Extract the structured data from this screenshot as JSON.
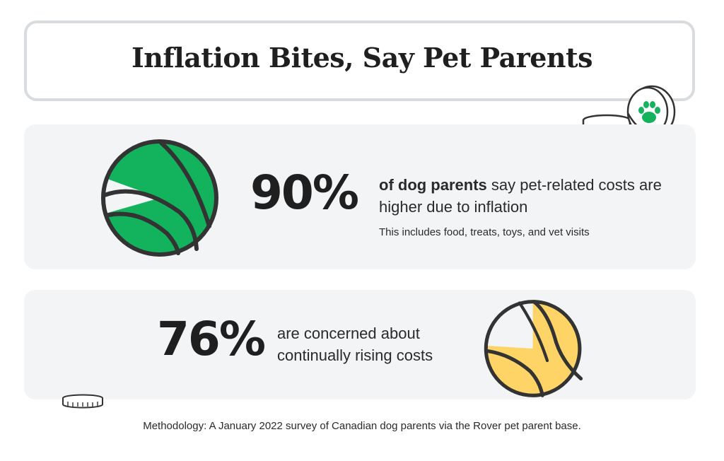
{
  "title": "Inflation Bites, Say Pet Parents",
  "colors": {
    "green": "#13b35d",
    "yellow": "#ffd466",
    "panel": "#f3f4f6",
    "outline": "#333333"
  },
  "chart_data": [
    {
      "type": "pie",
      "title": "",
      "value": 90,
      "label": "90%",
      "description_bold": "of dog parents",
      "description_rest": "say pet-related costs are higher due to inflation",
      "note": "This includes food, treats, toys, and vet visits",
      "color": "#13b35d"
    },
    {
      "type": "pie",
      "title": "",
      "value": 76,
      "label": "76%",
      "description_line1": "are concerned about",
      "description_line2": "continually rising costs",
      "color": "#ffd466"
    }
  ],
  "methodology": "Methodology: A January 2022 survey of Canadian dog parents via the Rover pet parent base.",
  "icons": [
    "coin-stack-icon",
    "paw-coin-icon",
    "coin-icon"
  ]
}
